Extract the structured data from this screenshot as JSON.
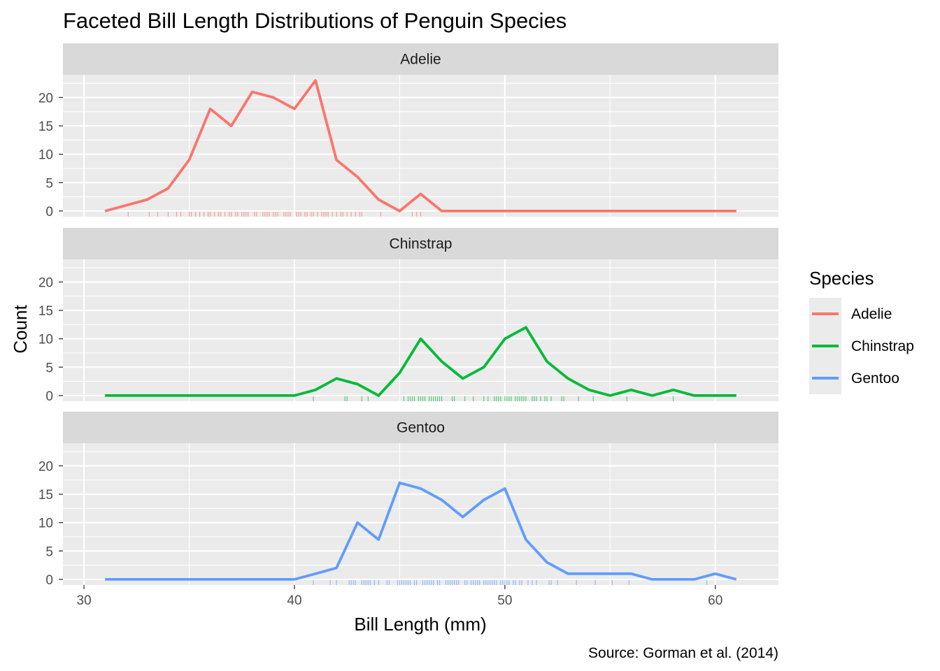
{
  "chart_data": {
    "type": "line",
    "title": "Faceted Bill Length Distributions of Penguin Species",
    "xlabel": "Bill Length (mm)",
    "ylabel": "Count",
    "caption": "Source: Gorman et al. (2014)",
    "legend_title": "Species",
    "legend_position": "right",
    "grid": true,
    "xlim": [
      29,
      63
    ],
    "ylim": [
      -1,
      24
    ],
    "x_ticks": [
      30,
      40,
      50,
      60
    ],
    "x_tick_labels": [
      "30",
      "40",
      "50",
      "60"
    ],
    "y_ticks": [
      0,
      5,
      10,
      15,
      20
    ],
    "y_tick_labels": [
      "0",
      "5",
      "10",
      "15",
      "20"
    ],
    "x": [
      31,
      32,
      33,
      34,
      35,
      36,
      37,
      38,
      39,
      40,
      41,
      42,
      43,
      44,
      45,
      46,
      47,
      48,
      49,
      50,
      51,
      52,
      53,
      54,
      55,
      56,
      57,
      58,
      59,
      60,
      61
    ],
    "series": [
      {
        "name": "Adelie",
        "color": "#F8766D",
        "values": [
          0,
          1,
          2,
          4,
          9,
          18,
          15,
          21,
          20,
          18,
          23,
          9,
          6,
          2,
          0,
          3,
          0,
          0,
          0,
          0,
          0,
          0,
          0,
          0,
          0,
          0,
          0,
          0,
          0,
          0,
          0
        ],
        "rug": [
          32.1,
          33.1,
          33.5,
          34.0,
          34.4,
          34.6,
          35.0,
          35.1,
          35.3,
          35.5,
          35.7,
          35.9,
          36.0,
          36.2,
          36.4,
          36.5,
          36.7,
          36.9,
          37.0,
          37.2,
          37.3,
          37.5,
          37.6,
          37.7,
          37.8,
          38.1,
          38.2,
          38.5,
          38.6,
          38.7,
          38.8,
          39.0,
          39.1,
          39.2,
          39.5,
          39.6,
          39.7,
          39.8,
          40.1,
          40.2,
          40.3,
          40.5,
          40.6,
          40.8,
          40.9,
          41.1,
          41.3,
          41.4,
          41.5,
          41.6,
          41.8,
          42.0,
          42.2,
          42.3,
          42.5,
          42.7,
          42.9,
          43.1,
          43.2,
          44.1,
          45.6,
          45.8,
          46.0
        ],
        "color_name": "salmon red"
      },
      {
        "name": "Chinstrap",
        "color": "#00BA38",
        "values": [
          0,
          0,
          0,
          0,
          0,
          0,
          0,
          0,
          0,
          0,
          1,
          3,
          2,
          0,
          4,
          10,
          6,
          3,
          5,
          10,
          12,
          6,
          3,
          1,
          0,
          1,
          0,
          1,
          0,
          0,
          0
        ],
        "rug": [
          40.9,
          42.4,
          42.5,
          43.2,
          43.5,
          45.2,
          45.4,
          45.5,
          45.6,
          45.7,
          45.9,
          46.0,
          46.1,
          46.2,
          46.4,
          46.5,
          46.6,
          46.7,
          46.8,
          46.9,
          47.0,
          47.5,
          47.6,
          48.1,
          48.5,
          49.0,
          49.2,
          49.5,
          49.6,
          49.7,
          49.8,
          50.0,
          50.1,
          50.2,
          50.3,
          50.5,
          50.6,
          50.7,
          50.8,
          50.9,
          51.0,
          51.3,
          51.4,
          51.5,
          51.7,
          51.9,
          52.0,
          52.2,
          52.7,
          52.8,
          53.5,
          54.2,
          55.8,
          58.0
        ],
        "color_name": "green"
      },
      {
        "name": "Gentoo",
        "color": "#619CFF",
        "values": [
          0,
          0,
          0,
          0,
          0,
          0,
          0,
          0,
          0,
          0,
          1,
          2,
          10,
          7,
          17,
          16,
          14,
          11,
          14,
          16,
          7,
          3,
          1,
          1,
          1,
          1,
          0,
          0,
          0,
          1,
          0
        ],
        "rug": [
          40.9,
          41.7,
          42.0,
          42.6,
          42.7,
          42.8,
          42.9,
          43.2,
          43.3,
          43.4,
          43.5,
          43.6,
          43.8,
          44.0,
          44.4,
          44.5,
          44.9,
          45.0,
          45.1,
          45.2,
          45.3,
          45.4,
          45.5,
          45.7,
          45.8,
          46.1,
          46.2,
          46.3,
          46.4,
          46.5,
          46.6,
          46.8,
          46.9,
          47.2,
          47.3,
          47.4,
          47.5,
          47.6,
          47.7,
          47.8,
          48.1,
          48.2,
          48.4,
          48.5,
          48.6,
          48.7,
          48.8,
          49.0,
          49.1,
          49.2,
          49.3,
          49.4,
          49.5,
          49.6,
          49.8,
          49.9,
          50.0,
          50.1,
          50.2,
          50.4,
          50.5,
          50.7,
          50.8,
          51.1,
          51.3,
          51.5,
          52.1,
          52.2,
          52.5,
          53.4,
          54.3,
          55.1,
          55.9,
          59.6
        ],
        "color_name": "blue"
      }
    ]
  }
}
